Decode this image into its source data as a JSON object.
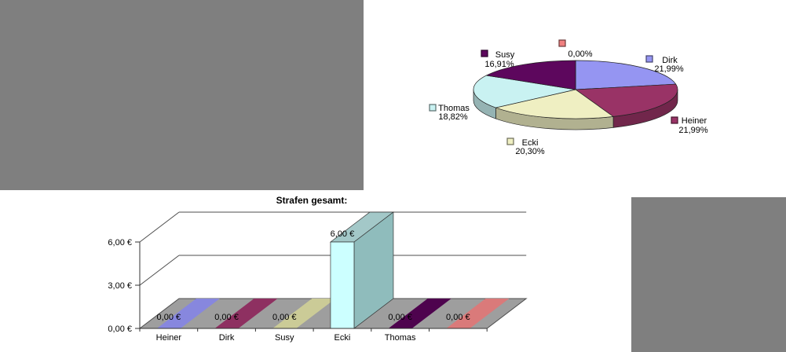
{
  "page": {
    "background": "#ffffff",
    "redacted_regions": [
      {
        "name": "redacted-top-left",
        "color": "#7f7f7f"
      },
      {
        "name": "redacted-bottom-right",
        "color": "#7f7f7f"
      }
    ]
  },
  "chart_data": [
    {
      "id": "pie-strafen-anteile",
      "type": "pie",
      "style": "3d-pie",
      "title": "",
      "legend_position": "none",
      "label_format": "name + percent (German decimal comma)",
      "slices": [
        {
          "name": "Dirk",
          "pct": 21.99,
          "pct_label": "21,99%",
          "color": "#9595F2"
        },
        {
          "name": "Heiner",
          "pct": 21.99,
          "pct_label": "21,99%",
          "color": "#993366"
        },
        {
          "name": "Ecki",
          "pct": 20.3,
          "pct_label": "20,30%",
          "color": "#EFEFC2"
        },
        {
          "name": "Thomas",
          "pct": 18.82,
          "pct_label": "18,82%",
          "color": "#C9F2F2"
        },
        {
          "name": "Susy",
          "pct": 16.91,
          "pct_label": "16,91%",
          "color": "#5D075D"
        },
        {
          "name": "",
          "pct": 0.0,
          "pct_label": "0,00%",
          "color": "#F08080"
        }
      ]
    },
    {
      "id": "bar-strafen-gesamt",
      "type": "bar",
      "style": "3d-column",
      "title": "Strafen gesamt:",
      "categories": [
        "Heiner",
        "Dirk",
        "Susy",
        "Ecki",
        "Thomas",
        ""
      ],
      "values": [
        0,
        0,
        0,
        6,
        0,
        0
      ],
      "value_labels": [
        "0,00 €",
        "0,00 €",
        "0,00 €",
        "6,00 €",
        "0,00 €",
        "0,00 €"
      ],
      "ytick_values": [
        0,
        3,
        6
      ],
      "ytick_labels": [
        "0,00 €",
        "3,00 €",
        "6,00 €"
      ],
      "ylim": [
        0,
        6
      ],
      "major_unit": 3,
      "grid": true,
      "xlabel": "",
      "ylabel": "",
      "point_colors": [
        "#8787DE",
        "#8E3061",
        "#CBCB97",
        "#CCFFFF",
        "#4E034E",
        "#DA7A7A"
      ],
      "column_faces": {
        "front": "#CCFFFF",
        "side": "#8FBCBC",
        "top": "#A3C8C8"
      },
      "floor_color": "#9E9E9E",
      "frame_color": "#4d4d4d"
    }
  ]
}
